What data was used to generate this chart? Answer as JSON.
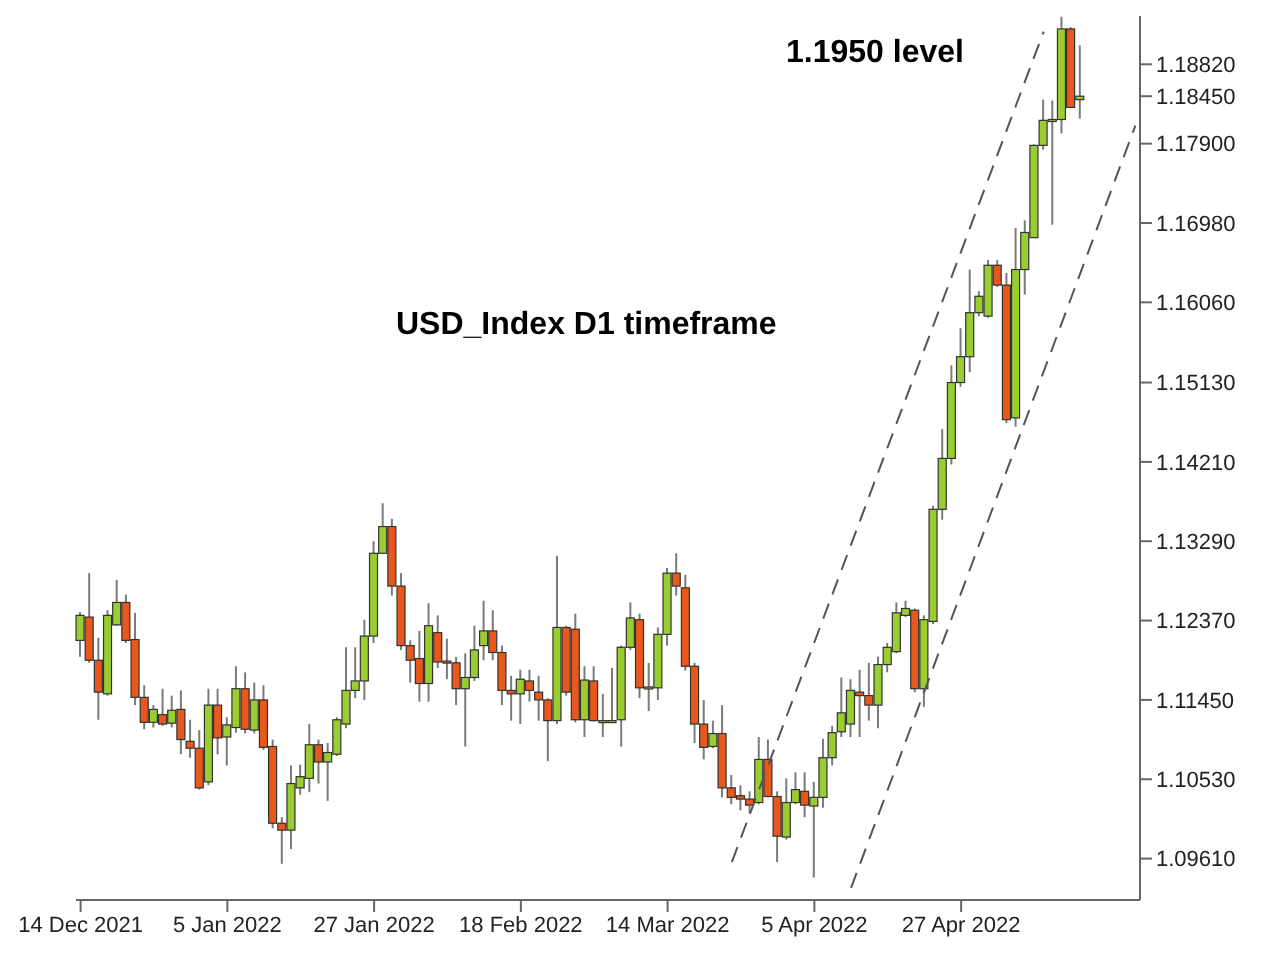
{
  "chart_data": {
    "type": "candlestick",
    "categories": [
      "14 Dec 2021",
      null,
      null,
      null,
      null,
      null,
      null,
      null,
      null,
      null,
      null,
      null,
      null,
      null,
      null,
      null,
      "5 Jan 2022",
      null,
      null,
      null,
      null,
      null,
      null,
      null,
      null,
      null,
      null,
      null,
      null,
      null,
      null,
      null,
      "27 Jan 2022",
      null,
      null,
      null,
      null,
      null,
      null,
      null,
      null,
      null,
      null,
      null,
      null,
      null,
      null,
      null,
      "18 Feb 2022",
      null,
      null,
      null,
      null,
      null,
      null,
      null,
      null,
      null,
      null,
      null,
      null,
      null,
      null,
      null,
      "14 Mar 2022",
      null,
      null,
      null,
      null,
      null,
      null,
      null,
      null,
      null,
      null,
      null,
      null,
      null,
      null,
      null,
      "5 Apr 2022",
      null,
      null,
      null,
      null,
      null,
      null,
      null,
      null,
      null,
      null,
      null,
      null,
      null,
      null,
      null,
      "27 Apr 2022",
      null,
      null,
      null,
      null,
      null,
      null,
      null,
      null,
      null,
      null,
      null,
      null,
      null,
      null,
      null,
      null,
      null,
      null,
      null
    ],
    "ylim": [
      1.0913,
      1.1938
    ],
    "yticks": [
      {
        "value": 1.0961,
        "label": "1.09610"
      },
      {
        "value": 1.1053,
        "label": "1.10530"
      },
      {
        "value": 1.1145,
        "label": "1.11450"
      },
      {
        "value": 1.1237,
        "label": "1.12370"
      },
      {
        "value": 1.1329,
        "label": "1.13290"
      },
      {
        "value": 1.1421,
        "label": "1.14210"
      },
      {
        "value": 1.1513,
        "label": "1.15130"
      },
      {
        "value": 1.1606,
        "label": "1.16060"
      },
      {
        "value": 1.1698,
        "label": "1.16980"
      },
      {
        "value": 1.179,
        "label": "1.17900"
      },
      {
        "value": 1.1845,
        "label": "1.18450"
      },
      {
        "value": 1.1882,
        "label": "1.18820"
      }
    ],
    "annotations": [
      "1.1950 level",
      "USD_Index D1 timeframe"
    ],
    "series": [
      {
        "ohlc": [
          [
            1.1214,
            1.1247,
            1.1195,
            1.1243
          ],
          [
            1.1241,
            1.1292,
            1.1188,
            1.1191
          ],
          [
            1.1191,
            1.1217,
            1.1122,
            1.1154
          ],
          [
            1.1152,
            1.1249,
            1.115,
            1.1243
          ],
          [
            1.1232,
            1.1284,
            1.1231,
            1.1258
          ],
          [
            1.1258,
            1.1267,
            1.1211,
            1.1214
          ],
          [
            1.1215,
            1.1246,
            1.1139,
            1.1148
          ],
          [
            1.1148,
            1.1162,
            1.1111,
            1.1119
          ],
          [
            1.1119,
            1.1139,
            1.1113,
            1.1134
          ],
          [
            1.1128,
            1.1158,
            1.1115,
            1.1117
          ],
          [
            1.1118,
            1.115,
            1.1113,
            1.1133
          ],
          [
            1.1134,
            1.1156,
            1.1082,
            1.1099
          ],
          [
            1.1097,
            1.1122,
            1.1078,
            1.1089
          ],
          [
            1.1089,
            1.111,
            1.1041,
            1.1043
          ],
          [
            1.105,
            1.1158,
            1.1046,
            1.1139
          ],
          [
            1.1139,
            1.1158,
            1.1082,
            1.1101
          ],
          [
            1.1102,
            1.1125,
            1.1069,
            1.1116
          ],
          [
            1.1113,
            1.1184,
            1.1107,
            1.1158
          ],
          [
            1.1158,
            1.1177,
            1.1106,
            1.1111
          ],
          [
            1.111,
            1.1165,
            1.1106,
            1.1145
          ],
          [
            1.1145,
            1.1162,
            1.1087,
            1.109
          ],
          [
            1.1091,
            1.1099,
            1.0996,
            1.1002
          ],
          [
            1.1002,
            1.1009,
            1.0955,
            1.0994
          ],
          [
            1.0994,
            1.1069,
            1.0972,
            1.1048
          ],
          [
            1.1043,
            1.107,
            1.1035,
            1.1056
          ],
          [
            1.1054,
            1.1117,
            1.1038,
            1.1093
          ],
          [
            1.1093,
            1.1099,
            1.1048,
            1.1073
          ],
          [
            1.1073,
            1.1095,
            1.1028,
            1.1084
          ],
          [
            1.1082,
            1.1125,
            1.108,
            1.1122
          ],
          [
            1.1117,
            1.1206,
            1.1112,
            1.1156
          ],
          [
            1.1156,
            1.1206,
            1.1147,
            1.1167
          ],
          [
            1.1167,
            1.1238,
            1.1145,
            1.1219
          ],
          [
            1.1219,
            1.1329,
            1.1211,
            1.1315
          ],
          [
            1.1315,
            1.1373,
            1.1315,
            1.1346
          ],
          [
            1.1346,
            1.1355,
            1.1266,
            1.1277
          ],
          [
            1.1277,
            1.1292,
            1.1203,
            1.1208
          ],
          [
            1.1208,
            1.1214,
            1.1165,
            1.1191
          ],
          [
            1.1193,
            1.1225,
            1.1143,
            1.1164
          ],
          [
            1.1164,
            1.1257,
            1.1143,
            1.1231
          ],
          [
            1.1223,
            1.1243,
            1.1182,
            1.1189
          ],
          [
            1.119,
            1.1216,
            1.1169,
            1.1188
          ],
          [
            1.1188,
            1.1195,
            1.1139,
            1.1158
          ],
          [
            1.1158,
            1.1199,
            1.1091,
            1.1171
          ],
          [
            1.1171,
            1.1231,
            1.1167,
            1.1203
          ],
          [
            1.1208,
            1.126,
            1.1191,
            1.1225
          ],
          [
            1.1225,
            1.1249,
            1.1191,
            1.12
          ],
          [
            1.12,
            1.1208,
            1.1139,
            1.1156
          ],
          [
            1.1156,
            1.1173,
            1.1121,
            1.1152
          ],
          [
            1.1152,
            1.118,
            1.1117,
            1.1169
          ],
          [
            1.1167,
            1.118,
            1.1143,
            1.1156
          ],
          [
            1.1154,
            1.1173,
            1.1121,
            1.1145
          ],
          [
            1.1145,
            1.1147,
            1.1074,
            1.1121
          ],
          [
            1.1121,
            1.1312,
            1.1117,
            1.1229
          ],
          [
            1.1229,
            1.1231,
            1.115,
            1.1154
          ],
          [
            1.1227,
            1.1245,
            1.1119,
            1.1122
          ],
          [
            1.1122,
            1.1184,
            1.1102,
            1.1168
          ],
          [
            1.1167,
            1.1184,
            1.112,
            1.1121
          ],
          [
            1.112,
            1.1152,
            1.1102,
            1.1121
          ],
          [
            1.1121,
            1.1182,
            1.112,
            1.1121
          ],
          [
            1.1122,
            1.1208,
            1.1091,
            1.1206
          ],
          [
            1.1206,
            1.1258,
            1.1203,
            1.124
          ],
          [
            1.1238,
            1.1245,
            1.1147,
            1.1159
          ],
          [
            1.1159,
            1.1188,
            1.1132,
            1.116
          ],
          [
            1.1159,
            1.1229,
            1.1145,
            1.1221
          ],
          [
            1.1221,
            1.1298,
            1.1208,
            1.1292
          ],
          [
            1.1292,
            1.1315,
            1.1266,
            1.1277
          ],
          [
            1.1275,
            1.129,
            1.1179,
            1.1184
          ],
          [
            1.1184,
            1.1188,
            1.1095,
            1.1117
          ],
          [
            1.1117,
            1.1145,
            1.1076,
            1.109
          ],
          [
            1.1091,
            1.1121,
            1.1089,
            1.1106
          ],
          [
            1.1106,
            1.1139,
            1.1032,
            1.1043
          ],
          [
            1.1043,
            1.1058,
            1.1024,
            1.1032
          ],
          [
            1.1034,
            1.1046,
            1.1017,
            1.103
          ],
          [
            1.103,
            1.1039,
            1.1013,
            1.1023
          ],
          [
            1.1026,
            1.1102,
            1.1024,
            1.1076
          ],
          [
            1.1076,
            1.1099,
            1.1032,
            1.1033
          ],
          [
            1.1033,
            1.1039,
            1.0957,
            1.0987
          ],
          [
            1.0986,
            1.1054,
            1.0983,
            1.1026
          ],
          [
            1.1026,
            1.1061,
            1.1024,
            1.1041
          ],
          [
            1.1039,
            1.1061,
            1.1009,
            1.1023
          ],
          [
            1.1022,
            1.105,
            1.0939,
            1.1032
          ],
          [
            1.1032,
            1.11,
            1.102,
            1.1078
          ],
          [
            1.1078,
            1.1115,
            1.1069,
            1.1107
          ],
          [
            1.1108,
            1.1171,
            1.1102,
            1.113
          ],
          [
            1.1117,
            1.1169,
            1.1102,
            1.1156
          ],
          [
            1.1154,
            1.118,
            1.1102,
            1.115
          ],
          [
            1.115,
            1.1188,
            1.1121,
            1.1139
          ],
          [
            1.1139,
            1.1195,
            1.1112,
            1.1186
          ],
          [
            1.1186,
            1.1211,
            1.1177,
            1.1206
          ],
          [
            1.1201,
            1.1258,
            1.1199,
            1.1246
          ],
          [
            1.1243,
            1.126,
            1.1241,
            1.1251
          ],
          [
            1.1249,
            1.1251,
            1.1154,
            1.1158
          ],
          [
            1.1158,
            1.1243,
            1.1137,
            1.1238
          ],
          [
            1.1236,
            1.137,
            1.1233,
            1.1366
          ],
          [
            1.1366,
            1.1459,
            1.1354,
            1.1425
          ],
          [
            1.1425,
            1.1533,
            1.1418,
            1.1513
          ],
          [
            1.1513,
            1.1576,
            1.1508,
            1.1543
          ],
          [
            1.1543,
            1.1644,
            1.1525,
            1.1594
          ],
          [
            1.1594,
            1.1619,
            1.159,
            1.1613
          ],
          [
            1.159,
            1.1655,
            1.1588,
            1.1649
          ],
          [
            1.1649,
            1.1655,
            1.1624,
            1.1626
          ],
          [
            1.1626,
            1.164,
            1.1466,
            1.147
          ],
          [
            1.1472,
            1.1692,
            1.1462,
            1.1644
          ],
          [
            1.1644,
            1.1701,
            1.1615,
            1.1687
          ],
          [
            1.1681,
            1.1789,
            1.1681,
            1.1788
          ],
          [
            1.1788,
            1.1841,
            1.1783,
            1.1817
          ],
          [
            1.1817,
            1.184,
            1.1696,
            1.1818
          ],
          [
            1.1818,
            1.1937,
            1.1802,
            1.1923
          ],
          [
            1.1923,
            1.1925,
            1.1832,
            1.1832
          ],
          [
            1.1841,
            1.1904,
            1.1819,
            1.1845
          ],
          null,
          null,
          null,
          null,
          null,
          null
        ],
        "colors": [
          "#9acd32",
          "#e8581c",
          "#e8581c",
          "#9acd32",
          "#9acd32",
          "#e8581c",
          "#e8581c",
          "#e8581c",
          "#9acd32",
          "#e8581c",
          "#9acd32",
          "#e8581c",
          "#e8581c",
          "#e8581c",
          "#9acd32",
          "#e8581c",
          "#9acd32",
          "#9acd32",
          "#e8581c",
          "#9acd32",
          "#e8581c",
          "#e8581c",
          "#e8581c",
          "#9acd32",
          "#9acd32",
          "#9acd32",
          "#e8581c",
          "#9acd32",
          "#9acd32",
          "#9acd32",
          "#9acd32",
          "#9acd32",
          "#9acd32",
          "#9acd32",
          "#e8581c",
          "#e8581c",
          "#e8581c",
          "#e8581c",
          "#9acd32",
          "#e8581c",
          "#e8581c",
          "#e8581c",
          "#9acd32",
          "#9acd32",
          "#9acd32",
          "#e8581c",
          "#e8581c",
          "#e8581c",
          "#9acd32",
          "#e8581c",
          "#e8581c",
          "#e8581c",
          "#9acd32",
          "#e8581c",
          "#e8581c",
          "#9acd32",
          "#e8581c",
          "#9acd32",
          "#9acd32",
          "#9acd32",
          "#9acd32",
          "#e8581c",
          "#9acd32",
          "#9acd32",
          "#9acd32",
          "#e8581c",
          "#e8581c",
          "#e8581c",
          "#e8581c",
          "#9acd32",
          "#e8581c",
          "#e8581c",
          "#e8581c",
          "#e8581c",
          "#9acd32",
          "#e8581c",
          "#e8581c",
          "#9acd32",
          "#9acd32",
          "#e8581c",
          "#9acd32",
          "#9acd32",
          "#9acd32",
          "#9acd32",
          "#9acd32",
          "#e8581c",
          "#e8581c",
          "#9acd32",
          "#9acd32",
          "#9acd32",
          "#9acd32",
          "#e8581c",
          "#9acd32",
          "#9acd32",
          "#9acd32",
          "#9acd32",
          "#9acd32",
          "#9acd32",
          "#9acd32",
          "#9acd32",
          "#e8581c",
          "#e8581c",
          "#9acd32",
          "#9acd32",
          "#9acd32",
          "#9acd32",
          "#9acd32",
          "#9acd32",
          "#e8581c",
          "#9acd32",
          null,
          null,
          null,
          null,
          null,
          null
        ]
      },
      {
        "type": "line",
        "color": "#555555",
        "line_style": "dashed",
        "values": [
          null,
          null,
          null,
          null,
          null,
          null,
          null,
          null,
          null,
          null,
          null,
          null,
          null,
          null,
          null,
          null,
          null,
          null,
          null,
          null,
          null,
          null,
          null,
          null,
          null,
          null,
          null,
          null,
          null,
          null,
          null,
          null,
          null,
          null,
          null,
          null,
          null,
          null,
          null,
          null,
          null,
          null,
          null,
          null,
          null,
          null,
          null,
          null,
          null,
          null,
          null,
          null,
          null,
          null,
          null,
          null,
          null,
          null,
          null,
          null,
          null,
          null,
          null,
          null,
          null,
          null,
          null,
          null,
          null,
          null,
          null,
          1.0957,
          null,
          null,
          null,
          null,
          null,
          null,
          null,
          null,
          null,
          null,
          null,
          null,
          null,
          null,
          null,
          null,
          null,
          null,
          null,
          null,
          null,
          null,
          null,
          null,
          null,
          null,
          null,
          null,
          null,
          null,
          null,
          null,
          null,
          1.192,
          null,
          null,
          null,
          null,
          null,
          null,
          null,
          null,
          null,
          null
        ]
      },
      {
        "type": "line",
        "color": "#555555",
        "line_style": "dashed",
        "values": [
          null,
          null,
          null,
          null,
          null,
          null,
          null,
          null,
          null,
          null,
          null,
          null,
          null,
          null,
          null,
          null,
          null,
          null,
          null,
          null,
          null,
          null,
          null,
          null,
          null,
          null,
          null,
          null,
          null,
          null,
          null,
          null,
          null,
          null,
          null,
          null,
          null,
          null,
          null,
          null,
          null,
          null,
          null,
          null,
          null,
          null,
          null,
          null,
          null,
          null,
          null,
          null,
          null,
          null,
          null,
          null,
          null,
          null,
          null,
          null,
          null,
          null,
          null,
          null,
          null,
          null,
          null,
          null,
          null,
          null,
          null,
          null,
          null,
          null,
          null,
          null,
          null,
          null,
          null,
          null,
          null,
          null,
          null,
          null,
          1.0927,
          null,
          null,
          null,
          null,
          null,
          null,
          null,
          null,
          null,
          null,
          null,
          null,
          null,
          null,
          null,
          null,
          null,
          null,
          null,
          null,
          null,
          null,
          null,
          null,
          null,
          null,
          null,
          null,
          null,
          null,
          1.1811
        ]
      }
    ]
  }
}
